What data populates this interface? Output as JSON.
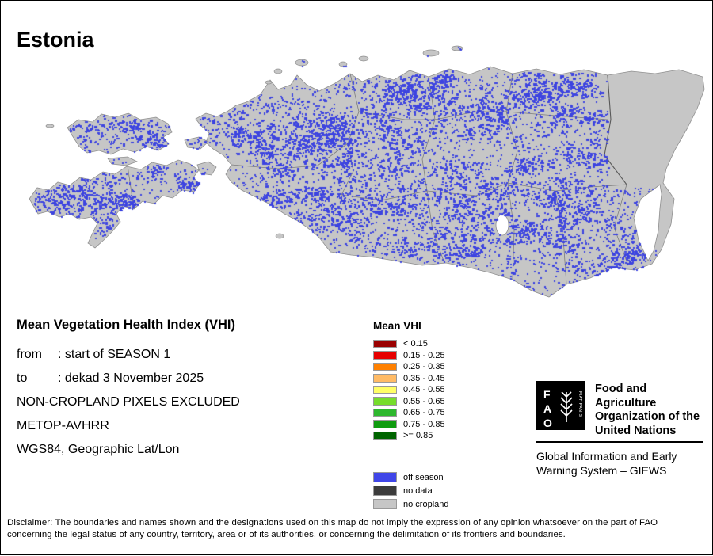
{
  "page": {
    "title": "Estonia"
  },
  "info": {
    "heading": "Mean Vegetation Health Index (VHI)",
    "from_label": "from",
    "from_value": ": start of SEASON 1",
    "to_label": "to",
    "to_value": ": dekad 3 November 2025",
    "exclusion_note": "NON-CROPLAND PIXELS EXCLUDED",
    "sensor": "METOP-AVHRR",
    "projection": "WGS84, Geographic Lat/Lon"
  },
  "legend": {
    "title": "Mean VHI",
    "classes": [
      {
        "label": "< 0.15",
        "color": "#9a0000"
      },
      {
        "label": "0.15 - 0.25",
        "color": "#e60000"
      },
      {
        "label": "0.25 - 0.35",
        "color": "#ff8000"
      },
      {
        "label": "0.35 - 0.45",
        "color": "#ffbb66"
      },
      {
        "label": "0.45 - 0.55",
        "color": "#ffff66"
      },
      {
        "label": "0.55 - 0.65",
        "color": "#77dd2c"
      },
      {
        "label": "0.65 - 0.75",
        "color": "#2eb82e"
      },
      {
        "label": "0.75 - 0.85",
        "color": "#0f9c0f"
      },
      {
        "label": ">= 0.85",
        "color": "#006400"
      }
    ],
    "extras": [
      {
        "label": "off season",
        "color": "#4046e8"
      },
      {
        "label": "no data",
        "color": "#3c3c3c"
      },
      {
        "label": "no cropland",
        "color": "#c6c6c6"
      }
    ]
  },
  "map": {
    "country": "Estonia",
    "off_season_color": "#3d44e0",
    "no_cropland_color": "#c6c6c6"
  },
  "fao": {
    "logo_letters": [
      "F",
      "A",
      "O"
    ],
    "logo_motto": "FIAT PANIS",
    "org_name_lines": "Food and Agriculture\nOrganization of the\nUnited Nations",
    "giews_lines": "Global Information and Early\nWarning System – GIEWS"
  },
  "disclaimer": "Disclaimer: The boundaries and names shown and the designations used on this map do not imply the expression of any opinion whatsoever on the part of FAO concerning the legal status of any country, territory, area or of its authorities, or concerning the delimitation of its frontiers and boundaries."
}
